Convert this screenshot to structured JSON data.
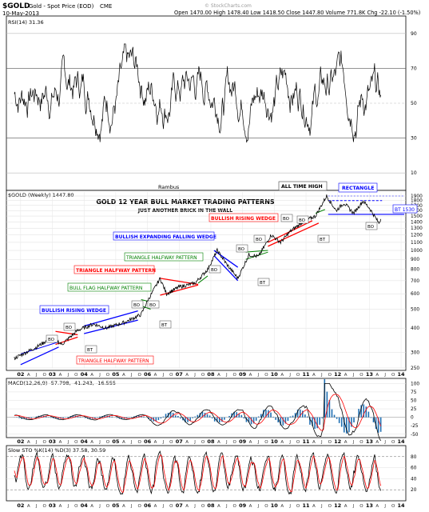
{
  "header": {
    "symbol": "$GOLD",
    "name": "Gold - Spot Price (EOD)",
    "exchange": "CME",
    "date": "10-May-2013",
    "quote": "Open 1470.00  High 1478.40  Low 1418.50  Close 1447.80  Volume 771.8K  Chg -22.10 (-1.50%)",
    "watermark": "© StockCharts.com"
  },
  "panels": {
    "rsi": {
      "label": "RSI(14) 31.36",
      "ticks": [
        "90",
        "70",
        "50",
        "30",
        "10"
      ]
    },
    "price": {
      "label": "$GOLD (Weekly) 1447.80",
      "author": "Rambus",
      "title": "GOLD 12 YEAR BULL MARKET TRADING PATTERNS",
      "subtitle": "JUST ANOTHER BRICK IN THE WALL",
      "ticks": [
        "1900",
        "1800",
        "1700",
        "1600",
        "1500",
        "1400",
        "1300",
        "1200",
        "1100",
        "1000",
        "900",
        "800",
        "700",
        "600",
        "500",
        "400",
        "300",
        "250"
      ]
    },
    "macd": {
      "label": "MACD(12,26,9) -57.798, -41.243, -16.555",
      "ticks": [
        "100",
        "75",
        "50",
        "25",
        "0",
        "-25",
        "-50"
      ]
    },
    "sto": {
      "label": "Slow STO %K(14) %D(3) 37.58, 30.59",
      "ticks": [
        "80",
        "60",
        "40",
        "20"
      ]
    }
  },
  "time_axis": {
    "years": [
      "02",
      "03",
      "04",
      "05",
      "06",
      "07",
      "08",
      "09",
      "10",
      "11",
      "12",
      "13",
      "14"
    ],
    "months": [
      "A",
      "J",
      "O"
    ]
  },
  "annotations": {
    "all_time_high": "ALL TIME HIGH",
    "rectangle": "RECTANGLE",
    "bt_1530": "BT 1530",
    "bullish_rising_wedge_2010": "BULLISH RISING WEDGE",
    "bullish_expanding_falling_wedge": "BULLISH EXPANDING FALLING WEDGE",
    "triangle_halfway_2008": "TRIANGLE HALFWAY PATTERN",
    "triangle_halfway_2006": "TRIANGLE HALFWAY PATTERN",
    "bull_flag_halfway": "BULL FLAG HALFWAY PATTERN",
    "bullish_rising_wedge_2004": "BULLISH RISING WEDGE",
    "triangle_halfway_2003": "TRIANGLE HALFWAY PATTERN",
    "bo": "BO",
    "bt": "BT"
  },
  "colors": {
    "blue": "#0000ff",
    "red": "#ff0000",
    "green": "#008000",
    "price": "#000000",
    "macd_hist": "#1f6fb3",
    "rsi_fill": "#2e6b2e"
  },
  "chart_data": {
    "type": "line",
    "x_range": [
      "2002",
      "2013"
    ],
    "series": [
      {
        "name": "$GOLD (Weekly)",
        "x": [
          2001.8,
          2002.5,
          2003.0,
          2003.3,
          2003.8,
          2004.3,
          2004.7,
          2005.3,
          2005.8,
          2006.0,
          2006.4,
          2006.6,
          2007.0,
          2007.5,
          2007.9,
          2008.2,
          2008.5,
          2008.85,
          2009.2,
          2009.5,
          2009.9,
          2010.2,
          2010.5,
          2010.9,
          2011.3,
          2011.65,
          2011.95,
          2012.2,
          2012.5,
          2012.8,
          2013.0,
          2013.3,
          2013.36
        ],
        "y": [
          280,
          320,
          360,
          330,
          390,
          420,
          400,
          430,
          470,
          550,
          720,
          600,
          650,
          680,
          800,
          1000,
          850,
          720,
          950,
          930,
          1200,
          1100,
          1250,
          1400,
          1500,
          1900,
          1600,
          1750,
          1550,
          1790,
          1650,
          1380,
          1447.8
        ]
      }
    ],
    "ylim": [
      250,
      1900
    ],
    "yscale": "log"
  }
}
